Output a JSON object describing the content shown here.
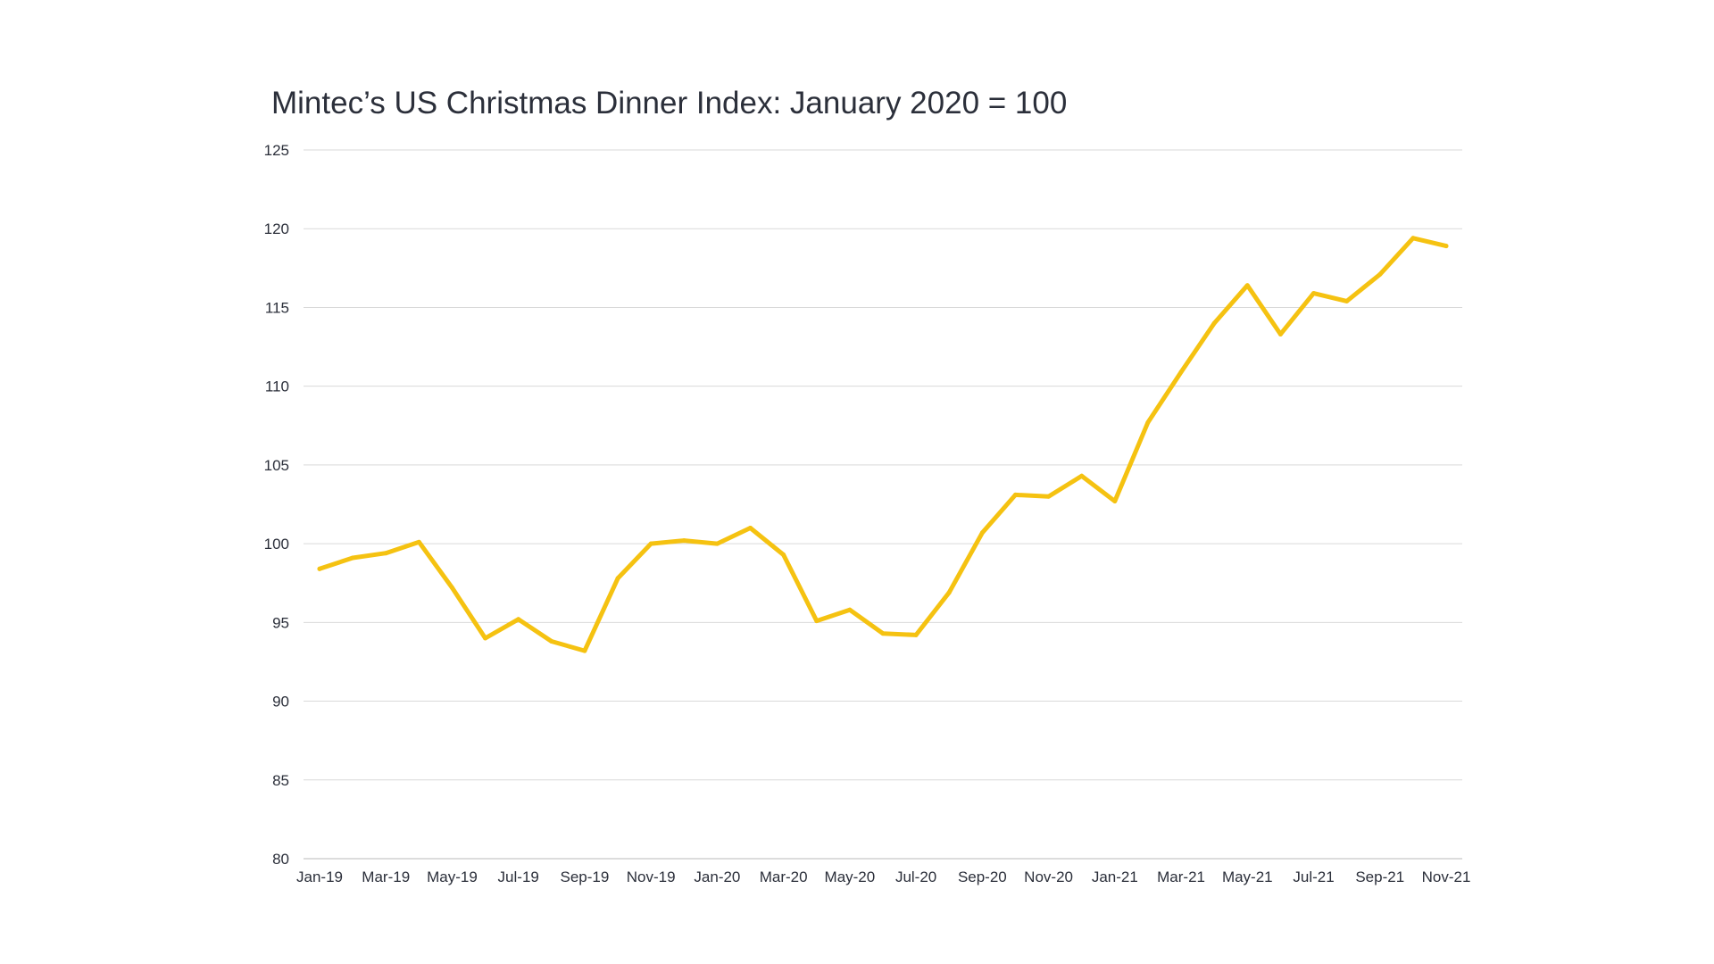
{
  "chart_data": {
    "type": "line",
    "title": "Mintec’s US Christmas Dinner Index: January 2020 = 100",
    "xlabel": "",
    "ylabel": "",
    "ylim": [
      80,
      125
    ],
    "yticks": [
      80,
      85,
      90,
      95,
      100,
      105,
      110,
      115,
      120,
      125
    ],
    "grid": true,
    "legend": "none",
    "categories": [
      "Jan-19",
      "Feb-19",
      "Mar-19",
      "Apr-19",
      "May-19",
      "Jun-19",
      "Jul-19",
      "Aug-19",
      "Sep-19",
      "Oct-19",
      "Nov-19",
      "Dec-19",
      "Jan-20",
      "Feb-20",
      "Mar-20",
      "Apr-20",
      "May-20",
      "Jun-20",
      "Jul-20",
      "Aug-20",
      "Sep-20",
      "Oct-20",
      "Nov-20",
      "Dec-20",
      "Jan-21",
      "Feb-21",
      "Mar-21",
      "Apr-21",
      "May-21",
      "Jun-21",
      "Jul-21",
      "Aug-21",
      "Sep-21",
      "Oct-21",
      "Nov-21"
    ],
    "xtick_labels": [
      "Jan-19",
      "Mar-19",
      "May-19",
      "Jul-19",
      "Sep-19",
      "Nov-19",
      "Jan-20",
      "Mar-20",
      "May-20",
      "Jul-20",
      "Sep-20",
      "Nov-20",
      "Jan-21",
      "Mar-21",
      "May-21",
      "Jul-21",
      "Sep-21",
      "Nov-21"
    ],
    "series": [
      {
        "color": "#f5c211",
        "values": [
          98.4,
          99.1,
          99.4,
          100.1,
          97.2,
          94.0,
          95.2,
          93.8,
          93.2,
          97.8,
          100.0,
          100.2,
          100.0,
          101.0,
          99.3,
          95.1,
          95.8,
          94.3,
          94.2,
          96.9,
          100.7,
          103.1,
          103.0,
          104.3,
          102.7,
          107.7,
          110.9,
          114.0,
          116.4,
          113.3,
          115.9,
          115.4,
          117.1,
          119.4,
          118.9
        ]
      }
    ]
  }
}
